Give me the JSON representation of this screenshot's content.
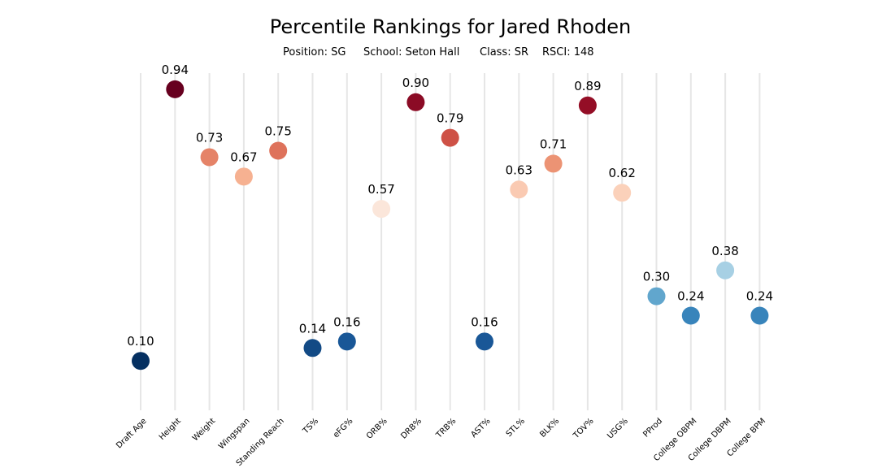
{
  "chart_data": {
    "type": "scatter",
    "title": "Percentile Rankings for Jared Rhoden",
    "subtitle": {
      "position": "Position: SG",
      "school": "School: Seton Hall",
      "class": "Class: SR",
      "rsci": "RSCI: 148"
    },
    "categories": [
      "Draft Age",
      "Height",
      "Weight",
      "Wingspan",
      "Standing Reach",
      "TS%",
      "eFG%",
      "ORB%",
      "DRB%",
      "TRB%",
      "AST%",
      "STL%",
      "BLK%",
      "TOV%",
      "USG%",
      "PProd",
      "College OBPM",
      "College DBPM",
      "College BPM"
    ],
    "values": [
      0.1,
      0.94,
      0.73,
      0.67,
      0.75,
      0.14,
      0.16,
      0.57,
      0.9,
      0.79,
      0.16,
      0.63,
      0.71,
      0.89,
      0.62,
      0.3,
      0.24,
      0.38,
      0.24
    ],
    "labels": [
      "0.10",
      "0.94",
      "0.73",
      "0.67",
      "0.75",
      "0.14",
      "0.16",
      "0.57",
      "0.90",
      "0.79",
      "0.16",
      "0.63",
      "0.71",
      "0.89",
      "0.62",
      "0.30",
      "0.24",
      "0.38",
      "0.24"
    ],
    "ylim": [
      0,
      1
    ],
    "colormap": "RdBu_r",
    "grid": "vertical",
    "xlabel": "",
    "ylabel": ""
  }
}
